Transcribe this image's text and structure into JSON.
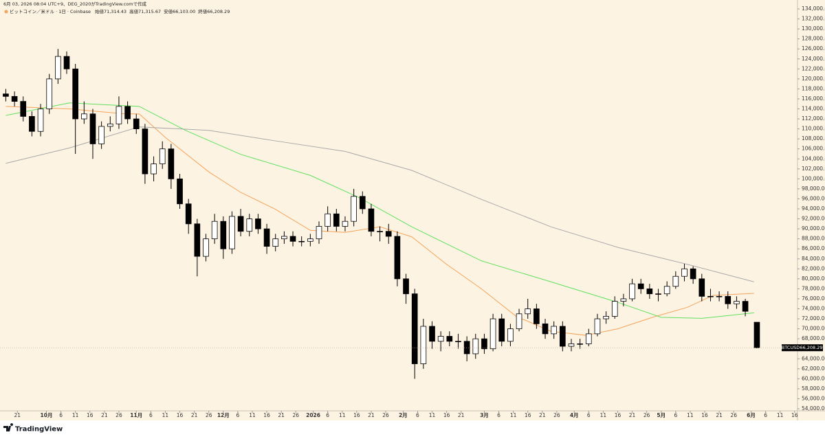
{
  "header": {
    "created": "6月 03, 2026 08:04 UTC+9、DEG_2020がTradingView.comで作成",
    "symbol": "ビットコイン／米ドル · 1日 · Coinbase",
    "stats": [
      {
        "label": "始値",
        "value": "71,314.43"
      },
      {
        "label": "高値",
        "value": "71,315.67"
      },
      {
        "label": "安値",
        "value": "66,103.00"
      },
      {
        "label": "終値",
        "value": "66,208.29"
      }
    ],
    "logo": "TradingView"
  },
  "chart_data": {
    "type": "candlestick",
    "ticker": "BTCUSD",
    "last_price_label": "66,208.29",
    "xlim": [
      "2025-09-15",
      "2026-06-17"
    ],
    "ylim": [
      54000,
      134000
    ],
    "x": [
      "2025-09-17",
      "2025-09-20",
      "2025-09-23",
      "2025-09-26",
      "2025-09-29",
      "2025-10-02",
      "2025-10-05",
      "2025-10-08",
      "2025-10-11",
      "2025-10-14",
      "2025-10-17",
      "2025-10-20",
      "2025-10-23",
      "2025-10-26",
      "2025-10-29",
      "2025-11-01",
      "2025-11-04",
      "2025-11-07",
      "2025-11-10",
      "2025-11-13",
      "2025-11-16",
      "2025-11-19",
      "2025-11-22",
      "2025-11-25",
      "2025-11-28",
      "2025-12-01",
      "2025-12-04",
      "2025-12-07",
      "2025-12-10",
      "2025-12-13",
      "2025-12-16",
      "2025-12-19",
      "2025-12-22",
      "2025-12-25",
      "2025-12-28",
      "2025-12-31",
      "2026-01-03",
      "2026-01-06",
      "2026-01-09",
      "2026-01-12",
      "2026-01-15",
      "2026-01-18",
      "2026-01-21",
      "2026-01-24",
      "2026-01-27",
      "2026-01-30",
      "2026-02-02",
      "2026-02-05",
      "2026-02-08",
      "2026-02-11",
      "2026-02-14",
      "2026-02-17",
      "2026-02-20",
      "2026-02-23",
      "2026-02-26",
      "2026-03-01",
      "2026-03-04",
      "2026-03-07",
      "2026-03-10",
      "2026-03-13",
      "2026-03-16",
      "2026-03-19",
      "2026-03-22",
      "2026-03-25",
      "2026-03-28",
      "2026-03-31",
      "2026-04-03",
      "2026-04-06",
      "2026-04-09",
      "2026-04-12",
      "2026-04-15",
      "2026-04-18",
      "2026-04-21",
      "2026-04-24",
      "2026-04-27",
      "2026-04-30",
      "2026-05-03",
      "2026-05-06",
      "2026-05-09",
      "2026-05-12",
      "2026-05-15",
      "2026-05-18",
      "2026-05-21",
      "2026-05-24",
      "2026-05-27",
      "2026-05-30",
      "2026-06-03"
    ],
    "open": [
      117000,
      116500,
      115500,
      112500,
      109500,
      114000,
      120000,
      124500,
      122000,
      112000,
      113000,
      107000,
      110500,
      111000,
      114500,
      112000,
      110000,
      101000,
      103000,
      106000,
      100000,
      95000,
      91000,
      84500,
      88000,
      91500,
      86000,
      92500,
      89500,
      92000,
      90000,
      86500,
      88000,
      88500,
      87500,
      87500,
      88000,
      90500,
      93000,
      90500,
      91500,
      96500,
      94000,
      89500,
      89500,
      88500,
      80000,
      77000,
      63000,
      70500,
      67500,
      68500,
      67500,
      67500,
      65000,
      68000,
      66000,
      72000,
      67500,
      70000,
      73000,
      74000,
      71000,
      69000,
      70500,
      66500,
      67000,
      67000,
      69000,
      72000,
      72500,
      75500,
      76000,
      79000,
      78000,
      77000,
      77000,
      78500,
      80500,
      82000,
      80000,
      76500,
      76500,
      76500,
      75000,
      75500,
      71314.43
    ],
    "high": [
      118000,
      117500,
      116500,
      113500,
      115000,
      121000,
      126000,
      125500,
      123000,
      115500,
      114000,
      111500,
      112500,
      116500,
      115500,
      113000,
      111000,
      104500,
      107500,
      107000,
      101000,
      96000,
      92000,
      89000,
      93000,
      92500,
      93500,
      94000,
      93000,
      93000,
      91000,
      89000,
      89500,
      89500,
      88500,
      89000,
      91500,
      94500,
      94000,
      92500,
      98000,
      97500,
      95000,
      90500,
      91000,
      89500,
      81000,
      78000,
      72000,
      71500,
      69500,
      69500,
      69000,
      68500,
      69000,
      69000,
      73000,
      73000,
      71000,
      74000,
      76000,
      75000,
      72000,
      71500,
      71500,
      68000,
      68000,
      70000,
      73000,
      73500,
      76500,
      77000,
      80000,
      80000,
      79000,
      78000,
      79500,
      81500,
      83000,
      82500,
      81000,
      78000,
      77500,
      77500,
      76500,
      76000,
      71315.67
    ],
    "low": [
      115500,
      114500,
      111500,
      108500,
      108500,
      113000,
      119000,
      121000,
      105000,
      111000,
      104000,
      106000,
      109500,
      110000,
      111000,
      109000,
      99000,
      99500,
      102000,
      98000,
      94000,
      89000,
      80500,
      83500,
      87000,
      84000,
      85000,
      88500,
      88500,
      89000,
      85000,
      85500,
      87000,
      86500,
      86500,
      86500,
      87000,
      89500,
      89500,
      89500,
      90500,
      93000,
      88500,
      87500,
      87000,
      78500,
      75000,
      60000,
      62000,
      66000,
      65500,
      66500,
      66000,
      63500,
      64000,
      65000,
      65500,
      66500,
      66500,
      69500,
      72000,
      70000,
      68000,
      68000,
      65500,
      65500,
      66000,
      66500,
      68500,
      71000,
      72000,
      74500,
      75500,
      77000,
      76000,
      75500,
      76500,
      78000,
      79500,
      79000,
      75500,
      75500,
      75500,
      74000,
      74000,
      72500,
      66103
    ],
    "close": [
      116500,
      115500,
      112500,
      109500,
      114000,
      120000,
      124500,
      122000,
      112000,
      113000,
      107000,
      110500,
      111000,
      114500,
      112000,
      110000,
      101000,
      103000,
      106000,
      100000,
      95000,
      91000,
      84500,
      88000,
      91500,
      86000,
      92500,
      89500,
      92000,
      90000,
      86500,
      88000,
      88500,
      87500,
      87500,
      88000,
      90500,
      93000,
      90500,
      91500,
      96500,
      94000,
      89500,
      89500,
      88500,
      80000,
      77000,
      63000,
      70500,
      67500,
      68500,
      67500,
      67500,
      65000,
      68000,
      66000,
      72000,
      67500,
      70000,
      73000,
      74000,
      71000,
      69000,
      70500,
      66500,
      67000,
      67000,
      69000,
      72000,
      72500,
      75500,
      76000,
      79000,
      78000,
      77000,
      77000,
      78500,
      80500,
      82000,
      80000,
      76500,
      76500,
      76500,
      75000,
      75500,
      73500,
      66208.29
    ],
    "up_color": "#ffffff",
    "down_color": "#000000",
    "outline_color": "#000000",
    "lines": [
      {
        "color": "#f5a35a",
        "x": [
          "2025-09-17",
          "2025-10-09",
          "2025-10-28",
          "2025-11-02",
          "2025-11-11",
          "2025-11-26",
          "2025-12-07",
          "2025-12-19",
          "2025-12-31",
          "2026-01-12",
          "2026-01-24",
          "2026-02-04",
          "2026-02-16",
          "2026-02-28",
          "2026-03-12",
          "2026-03-24",
          "2026-04-05",
          "2026-04-16",
          "2026-04-28",
          "2026-05-10",
          "2026-05-19",
          "2026-06-02"
        ],
        "values": [
          114500,
          114000,
          113000,
          113000,
          108300,
          101400,
          97300,
          93900,
          89700,
          89300,
          90400,
          88400,
          82900,
          78000,
          72500,
          69500,
          68700,
          70000,
          72300,
          74300,
          76700,
          77100
        ]
      },
      {
        "color": "#5fe05f",
        "x": [
          "2025-09-17",
          "2025-10-09",
          "2025-11-02",
          "2025-11-18",
          "2025-12-07",
          "2025-12-31",
          "2026-01-17",
          "2026-02-04",
          "2026-02-28",
          "2026-03-24",
          "2026-04-16",
          "2026-05-01",
          "2026-05-15",
          "2026-06-02"
        ],
        "values": [
          112700,
          115200,
          114500,
          109700,
          104900,
          100700,
          96200,
          90400,
          83600,
          79400,
          75300,
          72300,
          72100,
          73200
        ]
      },
      {
        "color": "#a8a8a8",
        "x": [
          "2025-09-17",
          "2025-10-09",
          "2025-11-02",
          "2025-11-26",
          "2025-12-19",
          "2026-01-12",
          "2026-02-04",
          "2026-02-28",
          "2026-03-24",
          "2026-04-16",
          "2026-05-10",
          "2026-06-02"
        ],
        "values": [
          103100,
          106200,
          110400,
          109700,
          107600,
          105500,
          101700,
          95900,
          90400,
          86300,
          82900,
          79400
        ]
      }
    ],
    "yticks": [
      {
        "value": 54000,
        "label": "54,000.00"
      },
      {
        "value": 56000,
        "label": "56,000.00"
      },
      {
        "value": 58000,
        "label": "58,000.00"
      },
      {
        "value": 60000,
        "label": "60,000.00"
      },
      {
        "value": 62000,
        "label": "62,000.00"
      },
      {
        "value": 64000,
        "label": "64,000.00"
      },
      {
        "value": 68000,
        "label": "68,000.00"
      },
      {
        "value": 70000,
        "label": "70,000.00"
      },
      {
        "value": 72000,
        "label": "72,000.00"
      },
      {
        "value": 74000,
        "label": "74,000.00"
      },
      {
        "value": 76000,
        "label": "76,000.00"
      },
      {
        "value": 78000,
        "label": "78,000.00"
      },
      {
        "value": 80000,
        "label": "80,000.00"
      },
      {
        "value": 82000,
        "label": "82,000.00"
      },
      {
        "value": 84000,
        "label": "84,000.00"
      },
      {
        "value": 86000,
        "label": "86,000.00"
      },
      {
        "value": 88000,
        "label": "88,000.00"
      },
      {
        "value": 90000,
        "label": "90,000.00"
      },
      {
        "value": 92000,
        "label": "92,000.00"
      },
      {
        "value": 94000,
        "label": "94,000.00"
      },
      {
        "value": 96000,
        "label": "96,000.00"
      },
      {
        "value": 98000,
        "label": "98,000.00"
      },
      {
        "value": 100000,
        "label": "100,000.00"
      },
      {
        "value": 102000,
        "label": "102,000.00"
      },
      {
        "value": 104000,
        "label": "104,000.00"
      },
      {
        "value": 106000,
        "label": "106,000.00"
      },
      {
        "value": 108000,
        "label": "108,000.00"
      },
      {
        "value": 110000,
        "label": "110,000.00"
      },
      {
        "value": 112000,
        "label": "112,000.00"
      },
      {
        "value": 114000,
        "label": "114,000.00"
      },
      {
        "value": 116000,
        "label": "116,000.00"
      },
      {
        "value": 118000,
        "label": "118,000.00"
      },
      {
        "value": 120000,
        "label": "120,000.00"
      },
      {
        "value": 122000,
        "label": "122,000.00"
      },
      {
        "value": 124000,
        "label": "124,000.00"
      },
      {
        "value": 126000,
        "label": "126,000.00"
      },
      {
        "value": 128000,
        "label": "128,000.00"
      },
      {
        "value": 130000,
        "label": "130,000.00"
      },
      {
        "value": 132000,
        "label": "132,000.00"
      },
      {
        "value": 134000,
        "label": "134,000.00"
      }
    ],
    "xticks": [
      {
        "value": "2025-09-21",
        "label": "21"
      },
      {
        "value": "2025-10-01",
        "label": "10月"
      },
      {
        "value": "2025-10-06",
        "label": "6"
      },
      {
        "value": "2025-10-11",
        "label": "11"
      },
      {
        "value": "2025-10-16",
        "label": "16"
      },
      {
        "value": "2025-10-21",
        "label": "21"
      },
      {
        "value": "2025-10-26",
        "label": "26"
      },
      {
        "value": "2025-11-01",
        "label": "11月"
      },
      {
        "value": "2025-11-06",
        "label": "6"
      },
      {
        "value": "2025-11-11",
        "label": "11"
      },
      {
        "value": "2025-11-16",
        "label": "16"
      },
      {
        "value": "2025-11-21",
        "label": "21"
      },
      {
        "value": "2025-11-26",
        "label": "26"
      },
      {
        "value": "2025-12-01",
        "label": "12月"
      },
      {
        "value": "2025-12-06",
        "label": "6"
      },
      {
        "value": "2025-12-11",
        "label": "11"
      },
      {
        "value": "2025-12-16",
        "label": "16"
      },
      {
        "value": "2025-12-21",
        "label": "21"
      },
      {
        "value": "2025-12-26",
        "label": "26"
      },
      {
        "value": "2026-01-01",
        "label": "2026"
      },
      {
        "value": "2026-01-06",
        "label": "6"
      },
      {
        "value": "2026-01-11",
        "label": "11"
      },
      {
        "value": "2026-01-16",
        "label": "16"
      },
      {
        "value": "2026-01-21",
        "label": "21"
      },
      {
        "value": "2026-01-26",
        "label": "26"
      },
      {
        "value": "2026-02-01",
        "label": "2月"
      },
      {
        "value": "2026-02-06",
        "label": "6"
      },
      {
        "value": "2026-02-11",
        "label": "11"
      },
      {
        "value": "2026-02-16",
        "label": "16"
      },
      {
        "value": "2026-02-21",
        "label": "21"
      },
      {
        "value": "2026-03-01",
        "label": "3月"
      },
      {
        "value": "2026-03-06",
        "label": "6"
      },
      {
        "value": "2026-03-11",
        "label": "11"
      },
      {
        "value": "2026-03-16",
        "label": "16"
      },
      {
        "value": "2026-03-21",
        "label": "21"
      },
      {
        "value": "2026-03-26",
        "label": "26"
      },
      {
        "value": "2026-04-01",
        "label": "4月"
      },
      {
        "value": "2026-04-06",
        "label": "6"
      },
      {
        "value": "2026-04-11",
        "label": "11"
      },
      {
        "value": "2026-04-16",
        "label": "16"
      },
      {
        "value": "2026-04-21",
        "label": "21"
      },
      {
        "value": "2026-04-26",
        "label": "26"
      },
      {
        "value": "2026-05-01",
        "label": "5月"
      },
      {
        "value": "2026-05-06",
        "label": "6"
      },
      {
        "value": "2026-05-11",
        "label": "11"
      },
      {
        "value": "2026-05-16",
        "label": "16"
      },
      {
        "value": "2026-05-21",
        "label": "21"
      },
      {
        "value": "2026-05-26",
        "label": "26"
      },
      {
        "value": "2026-06-01",
        "label": "6月"
      },
      {
        "value": "2026-06-06",
        "label": "6"
      },
      {
        "value": "2026-06-11",
        "label": "11"
      },
      {
        "value": "2026-06-16",
        "label": "16"
      }
    ]
  }
}
